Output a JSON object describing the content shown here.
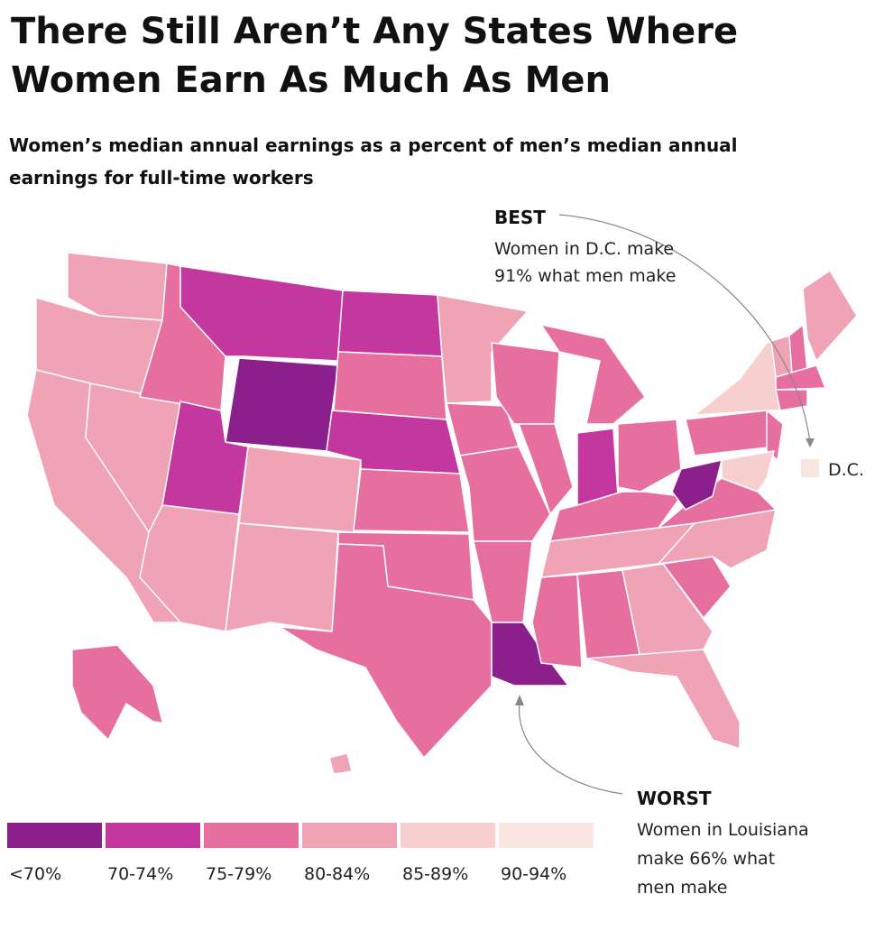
{
  "title_lines": [
    "There Still Aren’t Any States Where",
    "Women Earn As Much As Men"
  ],
  "subtitle_lines": [
    "Women’s median annual earnings as a percent of men’s median annual",
    "earnings for full-time workers"
  ],
  "legend": [
    {
      "label": "<70%",
      "color": "#8b1f8b"
    },
    {
      "label": "70-74%",
      "color": "#c4379f"
    },
    {
      "label": "75-79%",
      "color": "#e66fa0"
    },
    {
      "label": "80-84%",
      "color": "#efa3b5"
    },
    {
      "label": "85-89%",
      "color": "#f8cfcf"
    },
    {
      "label": "90-94%",
      "color": "#fbe7e1"
    }
  ],
  "map": {
    "region_bins": [
      3,
      3,
      3,
      3,
      2,
      1,
      0,
      1,
      3,
      3,
      3,
      1,
      2,
      1,
      2,
      2,
      2,
      3,
      2,
      2,
      2,
      0,
      2,
      2,
      2,
      1,
      2,
      2,
      3,
      2,
      2,
      3,
      3,
      2,
      3,
      2,
      0,
      2,
      4,
      2,
      4,
      3,
      3,
      2,
      2,
      2,
      2,
      3,
      5
    ]
  },
  "best": {
    "heading": "BEST",
    "lines": [
      "Women in D.C. make",
      "91% what men make"
    ],
    "marker_label": "D.C."
  },
  "worst": {
    "heading": "WORST",
    "lines": [
      "Women in Louisiana",
      "make 66% what",
      "men make"
    ]
  }
}
